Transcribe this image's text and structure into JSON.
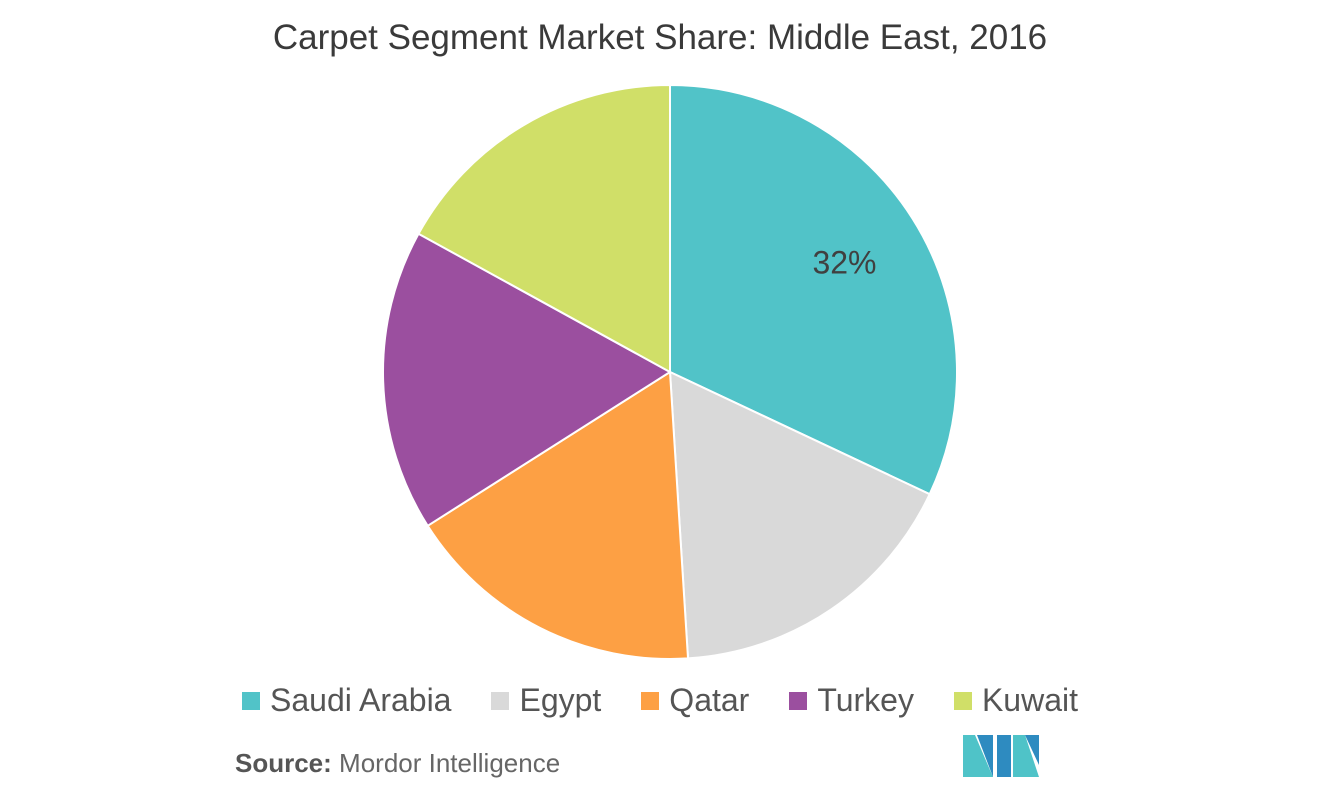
{
  "chart_data": {
    "type": "pie",
    "title": "Carpet Segment Market Share: Middle East, 2016",
    "categories": [
      "Saudi Arabia",
      "Egypt",
      "Qatar",
      "Turkey",
      "Kuwait"
    ],
    "values": [
      32,
      17,
      17,
      17,
      17
    ],
    "data_labels": [
      "32%",
      "",
      "",
      "",
      ""
    ],
    "colors": [
      "#51C3C8",
      "#D9D9D9",
      "#FDA044",
      "#9B4F9F",
      "#D0DF68"
    ],
    "legend_position": "bottom"
  },
  "source": {
    "label": "Source:",
    "text": "Mordor Intelligence"
  },
  "logo": {
    "name": "Mordor Intelligence",
    "colors": [
      "#2E8BC0",
      "#4FC3C8"
    ]
  }
}
